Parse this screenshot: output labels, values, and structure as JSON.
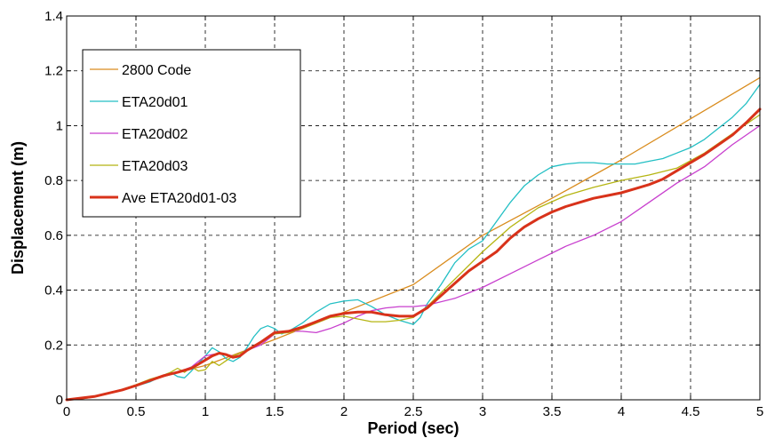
{
  "chart_data": {
    "type": "line",
    "title": "",
    "xlabel": "Period (sec)",
    "ylabel": "Displacement (m)",
    "xlim": [
      0,
      5
    ],
    "ylim": [
      0,
      1.4
    ],
    "xticks": [
      "0",
      "0.5",
      "1",
      "1.5",
      "2",
      "2.5",
      "3",
      "3.5",
      "4",
      "4.5",
      "5"
    ],
    "yticks": [
      "0",
      "0.2",
      "0.4",
      "0.6",
      "0.8",
      "1",
      "1.2",
      "1.4"
    ],
    "grid": true,
    "legend_position": "top-left",
    "series": [
      {
        "name": "2800 Code",
        "color": "#D98C1E",
        "x": [
          0,
          0.1,
          0.2,
          0.3,
          0.4,
          0.5,
          0.6,
          0.8,
          1.0,
          1.5,
          2.0,
          2.5,
          3.0,
          3.5,
          4.0,
          4.5,
          5.0
        ],
        "y": [
          0,
          0.003,
          0.01,
          0.022,
          0.036,
          0.052,
          0.069,
          0.1,
          0.125,
          0.22,
          0.32,
          0.42,
          0.6,
          0.735,
          0.875,
          1.025,
          1.175
        ]
      },
      {
        "name": "ETA20d01",
        "color": "#23BFC4",
        "x": [
          0,
          0.2,
          0.4,
          0.5,
          0.6,
          0.7,
          0.75,
          0.8,
          0.85,
          0.9,
          1.0,
          1.05,
          1.1,
          1.15,
          1.2,
          1.25,
          1.3,
          1.35,
          1.4,
          1.45,
          1.5,
          1.55,
          1.6,
          1.7,
          1.8,
          1.9,
          2.0,
          2.1,
          2.2,
          2.3,
          2.4,
          2.5,
          2.55,
          2.6,
          2.7,
          2.8,
          2.9,
          3.0,
          3.1,
          3.2,
          3.3,
          3.4,
          3.5,
          3.6,
          3.7,
          3.8,
          3.9,
          4.0,
          4.1,
          4.2,
          4.3,
          4.4,
          4.5,
          4.6,
          4.7,
          4.8,
          4.9,
          5.0
        ],
        "y": [
          0,
          0.012,
          0.035,
          0.05,
          0.065,
          0.09,
          0.1,
          0.085,
          0.08,
          0.105,
          0.16,
          0.19,
          0.175,
          0.15,
          0.14,
          0.155,
          0.19,
          0.23,
          0.26,
          0.27,
          0.26,
          0.24,
          0.25,
          0.28,
          0.32,
          0.35,
          0.36,
          0.365,
          0.34,
          0.31,
          0.29,
          0.275,
          0.3,
          0.35,
          0.42,
          0.5,
          0.55,
          0.58,
          0.65,
          0.72,
          0.78,
          0.82,
          0.85,
          0.86,
          0.865,
          0.865,
          0.86,
          0.86,
          0.86,
          0.87,
          0.88,
          0.9,
          0.92,
          0.95,
          0.99,
          1.03,
          1.08,
          1.15
        ]
      },
      {
        "name": "ETA20d02",
        "color": "#C83FCE",
        "x": [
          0,
          0.2,
          0.4,
          0.5,
          0.6,
          0.7,
          0.8,
          0.9,
          1.0,
          1.1,
          1.2,
          1.3,
          1.4,
          1.5,
          1.6,
          1.7,
          1.8,
          1.9,
          2.0,
          2.1,
          2.2,
          2.3,
          2.4,
          2.5,
          2.6,
          2.8,
          3.0,
          3.2,
          3.4,
          3.6,
          3.8,
          4.0,
          4.2,
          4.4,
          4.6,
          4.8,
          5.0
        ],
        "y": [
          0,
          0.012,
          0.035,
          0.05,
          0.07,
          0.085,
          0.1,
          0.12,
          0.16,
          0.17,
          0.16,
          0.18,
          0.2,
          0.24,
          0.25,
          0.25,
          0.245,
          0.26,
          0.28,
          0.305,
          0.325,
          0.335,
          0.34,
          0.34,
          0.345,
          0.37,
          0.41,
          0.46,
          0.51,
          0.56,
          0.6,
          0.65,
          0.72,
          0.79,
          0.85,
          0.93,
          1.0
        ]
      },
      {
        "name": "ETA20d03",
        "color": "#B5B512",
        "x": [
          0,
          0.2,
          0.4,
          0.5,
          0.6,
          0.7,
          0.75,
          0.8,
          0.85,
          0.9,
          0.95,
          1.0,
          1.05,
          1.1,
          1.2,
          1.3,
          1.4,
          1.5,
          1.6,
          1.7,
          1.8,
          1.9,
          2.0,
          2.1,
          2.2,
          2.3,
          2.4,
          2.5,
          2.6,
          2.8,
          3.0,
          3.2,
          3.4,
          3.6,
          3.8,
          4.0,
          4.2,
          4.4,
          4.6,
          4.8,
          5.0
        ],
        "y": [
          0,
          0.012,
          0.038,
          0.055,
          0.075,
          0.09,
          0.1,
          0.115,
          0.1,
          0.12,
          0.105,
          0.11,
          0.14,
          0.125,
          0.16,
          0.18,
          0.21,
          0.24,
          0.245,
          0.26,
          0.28,
          0.3,
          0.305,
          0.295,
          0.285,
          0.285,
          0.29,
          0.3,
          0.34,
          0.44,
          0.54,
          0.63,
          0.7,
          0.745,
          0.775,
          0.8,
          0.82,
          0.845,
          0.9,
          0.97,
          1.04
        ]
      },
      {
        "name": "Ave ETA20d01-03",
        "color": "#D8321A",
        "x": [
          0,
          0.2,
          0.4,
          0.5,
          0.6,
          0.7,
          0.8,
          0.9,
          1.0,
          1.05,
          1.1,
          1.15,
          1.2,
          1.25,
          1.3,
          1.4,
          1.5,
          1.6,
          1.7,
          1.8,
          1.9,
          2.0,
          2.1,
          2.2,
          2.3,
          2.4,
          2.5,
          2.6,
          2.7,
          2.8,
          2.9,
          3.0,
          3.1,
          3.2,
          3.3,
          3.4,
          3.5,
          3.6,
          3.7,
          3.8,
          3.9,
          4.0,
          4.1,
          4.2,
          4.3,
          4.4,
          4.5,
          4.6,
          4.7,
          4.8,
          4.9,
          5.0
        ],
        "y": [
          0,
          0.012,
          0.036,
          0.052,
          0.07,
          0.088,
          0.1,
          0.115,
          0.145,
          0.16,
          0.17,
          0.165,
          0.155,
          0.16,
          0.18,
          0.21,
          0.245,
          0.25,
          0.265,
          0.285,
          0.305,
          0.315,
          0.32,
          0.32,
          0.31,
          0.305,
          0.305,
          0.335,
          0.38,
          0.425,
          0.47,
          0.505,
          0.54,
          0.59,
          0.63,
          0.66,
          0.685,
          0.705,
          0.72,
          0.735,
          0.745,
          0.755,
          0.77,
          0.785,
          0.805,
          0.835,
          0.865,
          0.895,
          0.93,
          0.965,
          1.01,
          1.06
        ]
      }
    ]
  }
}
